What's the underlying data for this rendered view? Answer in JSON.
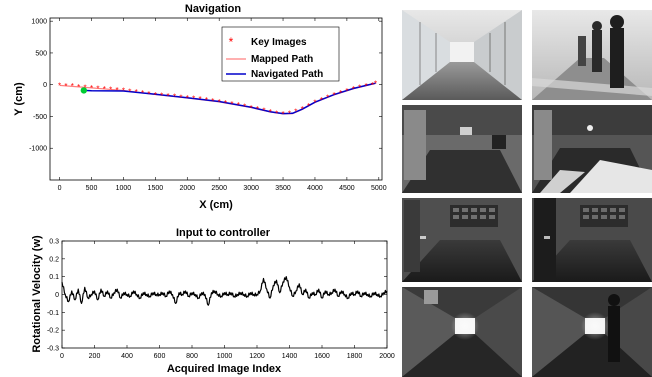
{
  "chart_data": [
    {
      "type": "scatter",
      "title": "Navigation",
      "xlabel": "X (cm)",
      "ylabel": "Y (cm)",
      "xlim": [
        -150,
        5050
      ],
      "ylim": [
        -1500,
        1050
      ],
      "xticks": [
        0,
        500,
        1000,
        1500,
        2000,
        2500,
        3000,
        3500,
        4000,
        4500,
        5000
      ],
      "yticks": [
        1000,
        500,
        0,
        -500,
        -1000
      ],
      "legend_position": "top-right",
      "grid": false,
      "series": [
        {
          "name": "Key Images",
          "kind": "markers",
          "color": "#ff0000",
          "x": [
            0,
            100,
            200,
            300,
            400,
            500,
            600,
            700,
            800,
            900,
            1000,
            1100,
            1200,
            1300,
            1400,
            1500,
            1600,
            1700,
            1800,
            1900,
            2000,
            2100,
            2200,
            2300,
            2400,
            2500,
            2600,
            2700,
            2800,
            2900,
            3000,
            3100,
            3200,
            3300,
            3400,
            3500,
            3600,
            3700,
            3800,
            3900,
            4000,
            4100,
            4200,
            4300,
            4400,
            4500,
            4600,
            4700,
            4800,
            4900,
            4950
          ],
          "y": [
            -10,
            -15,
            -20,
            -30,
            -40,
            -50,
            -60,
            -65,
            -70,
            -80,
            -90,
            -100,
            -110,
            -125,
            -140,
            -155,
            -165,
            -175,
            -185,
            -200,
            -210,
            -215,
            -225,
            -240,
            -255,
            -270,
            -285,
            -300,
            -320,
            -340,
            -360,
            -380,
            -405,
            -430,
            -450,
            -460,
            -450,
            -420,
            -380,
            -330,
            -280,
            -240,
            -200,
            -160,
            -125,
            -95,
            -65,
            -40,
            -20,
            0,
            20
          ]
        },
        {
          "name": "Mapped Path",
          "kind": "line",
          "color": "#ff8080",
          "x": [
            0,
            500,
            1000,
            1500,
            2000,
            2500,
            3000,
            3300,
            3500,
            3650,
            3800,
            4000,
            4300,
            4600,
            4950
          ],
          "y": [
            -10,
            -50,
            -90,
            -155,
            -210,
            -270,
            -360,
            -430,
            -460,
            -455,
            -390,
            -280,
            -160,
            -65,
            20
          ]
        },
        {
          "name": "Navigated Path",
          "kind": "line",
          "color": "#0000cc",
          "x": [
            380,
            500,
            1000,
            1500,
            2000,
            2500,
            3000,
            3300,
            3500,
            3650,
            3800,
            4000,
            4300,
            4600,
            4950
          ],
          "y": [
            -90,
            -95,
            -100,
            -150,
            -205,
            -265,
            -355,
            -425,
            -455,
            -450,
            -385,
            -275,
            -155,
            -60,
            25
          ]
        },
        {
          "name": "",
          "kind": "start-point",
          "color": "#00cc33",
          "x": [
            380
          ],
          "y": [
            -90
          ]
        }
      ]
    },
    {
      "type": "line",
      "title": "Input to controller",
      "xlabel": "Acquired Image Index",
      "ylabel": "Rotational Velocity (w)",
      "xlim": [
        0,
        2000
      ],
      "ylim": [
        -0.3,
        0.3
      ],
      "xticks": [
        0,
        200,
        400,
        600,
        800,
        1000,
        1200,
        1400,
        1600,
        1800,
        2000
      ],
      "yticks": [
        0.3,
        0.2,
        0.1,
        0,
        -0.1,
        -0.2,
        -0.3
      ],
      "ytick_labels": [
        "0.3",
        "0.2",
        "0.1",
        "0",
        "-0.1",
        "-0.2",
        "-0.3"
      ],
      "grid": false,
      "series": [
        {
          "name": "",
          "color": "#000000",
          "x": [
            0,
            20,
            40,
            60,
            80,
            100,
            120,
            140,
            160,
            180,
            200,
            220,
            240,
            260,
            280,
            300,
            320,
            340,
            360,
            380,
            400,
            420,
            440,
            460,
            480,
            500,
            520,
            540,
            560,
            580,
            600,
            620,
            640,
            660,
            680,
            700,
            720,
            740,
            760,
            780,
            800,
            820,
            840,
            860,
            880,
            900,
            920,
            940,
            960,
            980,
            1000,
            1020,
            1040,
            1060,
            1080,
            1100,
            1120,
            1140,
            1160,
            1180,
            1200,
            1220,
            1240,
            1260,
            1280,
            1300,
            1320,
            1340,
            1360,
            1380,
            1400,
            1420,
            1440,
            1460,
            1480,
            1500,
            1520,
            1540,
            1560,
            1580,
            1600,
            1620,
            1640,
            1660,
            1680,
            1700,
            1720,
            1740,
            1760,
            1780,
            1800,
            1820,
            1840,
            1860,
            1880,
            1900,
            1920,
            1940,
            1960,
            1980,
            2000
          ],
          "y": [
            0.07,
            0.0,
            -0.04,
            0.02,
            -0.03,
            0.03,
            -0.05,
            0.04,
            -0.02,
            0.0,
            0.02,
            -0.03,
            0.03,
            -0.01,
            0.02,
            -0.02,
            0.01,
            0.03,
            -0.02,
            0.01,
            0.0,
            -0.01,
            0.02,
            0.0,
            -0.02,
            0.01,
            0.0,
            -0.01,
            0.01,
            0.0,
            0.0,
            0.01,
            -0.01,
            0.02,
            0.0,
            -0.05,
            0.01,
            0.0,
            0.02,
            -0.01,
            0.01,
            0.0,
            -0.02,
            0.01,
            0.0,
            -0.06,
            0.01,
            0.02,
            0.0,
            -0.01,
            0.01,
            0.0,
            0.01,
            -0.01,
            0.0,
            0.01,
            0.0,
            -0.01,
            0.01,
            0.0,
            0.0,
            0.02,
            0.09,
            0.03,
            -0.02,
            0.05,
            0.08,
            0.01,
            0.07,
            0.1,
            0.04,
            -0.01,
            0.02,
            0.06,
            0.0,
            0.03,
            -0.02,
            0.01,
            0.0,
            0.03,
            -0.02,
            0.02,
            0.0,
            0.01,
            0.03,
            -0.01,
            0.02,
            0.0,
            -0.02,
            0.01,
            0.0,
            0.02,
            -0.01,
            0.01,
            0.0,
            -0.01,
            0.01,
            0.0,
            -0.01,
            0.01,
            0.02
          ]
        }
      ]
    }
  ],
  "photo_grid": {
    "rows": 4,
    "cols": 2,
    "tiles": [
      {
        "name": "photo-corridor-windows-left",
        "style": "corridor-bright"
      },
      {
        "name": "photo-corridor-pedestrians",
        "style": "corridor-people"
      },
      {
        "name": "photo-dark-room-left",
        "style": "room-dark"
      },
      {
        "name": "photo-dark-room-sunlit",
        "style": "room-sunlit"
      },
      {
        "name": "photo-hallway-notice-board-left",
        "style": "hallway-board"
      },
      {
        "name": "photo-hallway-notice-board-right",
        "style": "hallway-board-person"
      },
      {
        "name": "photo-long-hallway-left",
        "style": "hallway-long"
      },
      {
        "name": "photo-long-hallway-person",
        "style": "hallway-long-person"
      }
    ]
  },
  "colors": {
    "key_images": "#ff0000",
    "mapped_path": "#ff8080",
    "navigated_path": "#0000cc",
    "start_point": "#00cc33",
    "controller_line": "#000000"
  }
}
